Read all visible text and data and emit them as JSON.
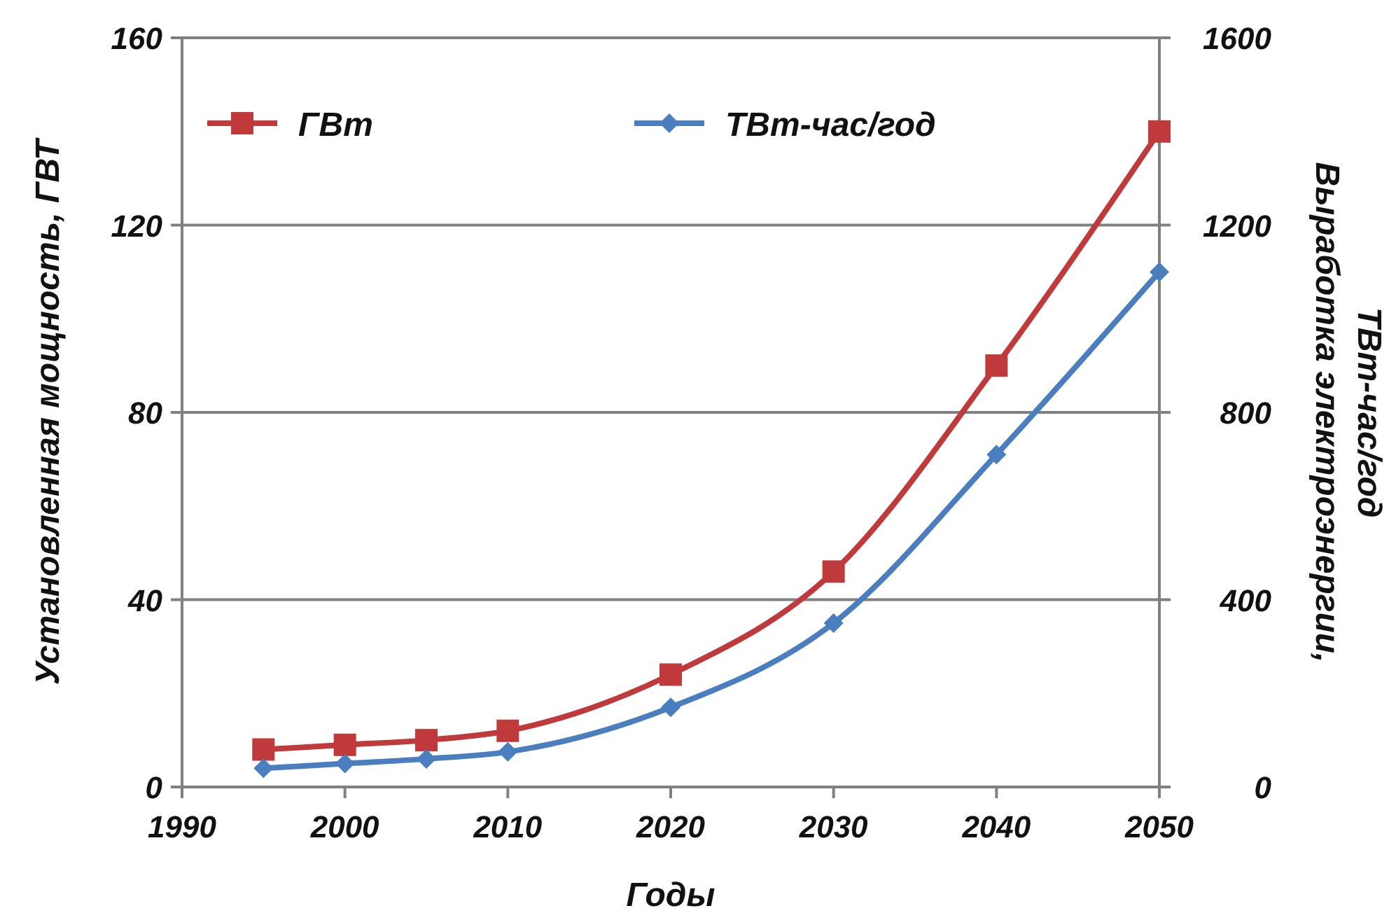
{
  "chart_data": {
    "type": "line",
    "x": [
      1995,
      2000,
      2005,
      2010,
      2020,
      2030,
      2040,
      2050
    ],
    "xlim": [
      1990,
      2050
    ],
    "xticks": [
      1990,
      2000,
      2010,
      2020,
      2030,
      2040,
      2050
    ],
    "ylim": [
      0,
      160
    ],
    "yticks": [
      0,
      40,
      80,
      120,
      160
    ],
    "y2lim": [
      0,
      1600
    ],
    "y2ticks": [
      0,
      400,
      800,
      1200,
      1600
    ],
    "xlabel": "Годы",
    "ylabel": "Установленная мощность, ГВТ",
    "y2label": "Выработка электроэнергии,\nТВт-час/год",
    "grid": "y",
    "legend": "top",
    "series": [
      {
        "name": "ГВт",
        "color": "#c0393b",
        "marker": "square",
        "values": [
          8,
          9,
          10,
          12,
          24,
          46,
          90,
          140
        ]
      },
      {
        "name": "ТВт-час/год",
        "color": "#4a7ebf",
        "marker": "diamond",
        "axis": "y2",
        "values": [
          40,
          50,
          60,
          75,
          170,
          350,
          710,
          1100
        ]
      }
    ]
  }
}
